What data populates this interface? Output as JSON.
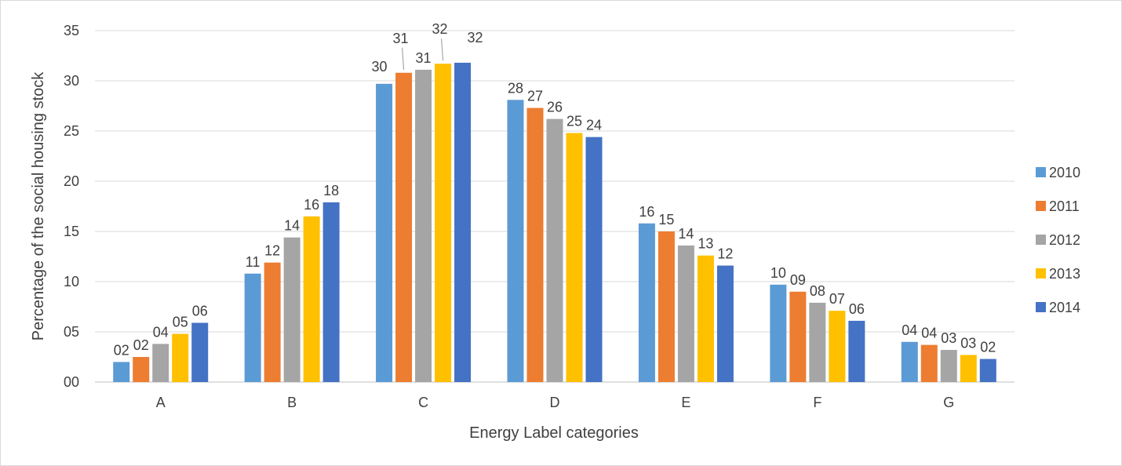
{
  "chart_data": {
    "type": "bar",
    "title": "",
    "xlabel": "Energy Label categories",
    "ylabel": "Percentage of the social housing stock",
    "ylim": [
      0,
      35
    ],
    "yticks": [
      "00",
      "05",
      "10",
      "15",
      "20",
      "25",
      "30",
      "35"
    ],
    "grid": true,
    "legend_position": "right",
    "categories": [
      "A",
      "B",
      "C",
      "D",
      "E",
      "F",
      "G"
    ],
    "series": [
      {
        "name": "2010",
        "color": "#5B9BD5",
        "values": [
          2.0,
          10.8,
          29.7,
          28.1,
          15.8,
          9.7,
          4.0
        ],
        "labels": [
          "02",
          "11",
          "30",
          "28",
          "16",
          "10",
          "04"
        ]
      },
      {
        "name": "2011",
        "color": "#ED7D31",
        "values": [
          2.5,
          11.9,
          30.8,
          27.3,
          15.0,
          9.0,
          3.7
        ],
        "labels": [
          "02",
          "12",
          "31",
          "27",
          "15",
          "09",
          "04"
        ]
      },
      {
        "name": "2012",
        "color": "#A5A5A5",
        "values": [
          3.8,
          14.4,
          31.1,
          26.2,
          13.6,
          7.9,
          3.2
        ],
        "labels": [
          "04",
          "14",
          "31",
          "26",
          "14",
          "08",
          "03"
        ]
      },
      {
        "name": "2013",
        "color": "#FFC000",
        "values": [
          4.8,
          16.5,
          31.7,
          24.8,
          12.6,
          7.1,
          2.7
        ],
        "labels": [
          "05",
          "16",
          "32",
          "25",
          "13",
          "07",
          "03"
        ]
      },
      {
        "name": "2014",
        "color": "#4472C4",
        "values": [
          5.9,
          17.9,
          31.8,
          24.4,
          11.6,
          6.1,
          2.3
        ],
        "labels": [
          "06",
          "18",
          "32",
          "24",
          "12",
          "06",
          "02"
        ]
      }
    ]
  }
}
